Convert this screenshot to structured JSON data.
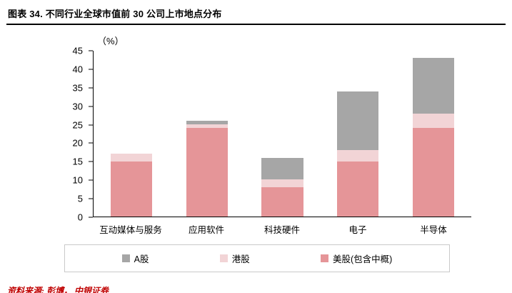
{
  "header": {
    "title": "图表 34. 不同行业全球市值前 30 公司上市地点分布"
  },
  "footer": {
    "source": "资料来源: 彭博， 中银证券"
  },
  "chart_data": {
    "type": "bar",
    "stacked": true,
    "title": "不同行业全球市值前 30 公司上市地点分布",
    "unit_label": "（%）",
    "categories": [
      "互动媒体与服务",
      "应用软件",
      "科技硬件",
      "电子",
      "半导体"
    ],
    "series": [
      {
        "name": "A股",
        "color": "#a6a6a6",
        "values": [
          0,
          1,
          6,
          16,
          15
        ]
      },
      {
        "name": "港股",
        "color": "#f2d4d6",
        "values": [
          2,
          1,
          2,
          3,
          4
        ]
      },
      {
        "name": "美股(包含中概)",
        "color": "#e59598",
        "values": [
          15,
          24,
          8,
          15,
          24
        ]
      }
    ],
    "totals": [
      17,
      26,
      16,
      34,
      43
    ],
    "ylim": [
      0,
      45
    ],
    "yticks": [
      0,
      5,
      10,
      15,
      20,
      25,
      30,
      35,
      40,
      45
    ],
    "grid": false,
    "legend_position": "bottom"
  }
}
